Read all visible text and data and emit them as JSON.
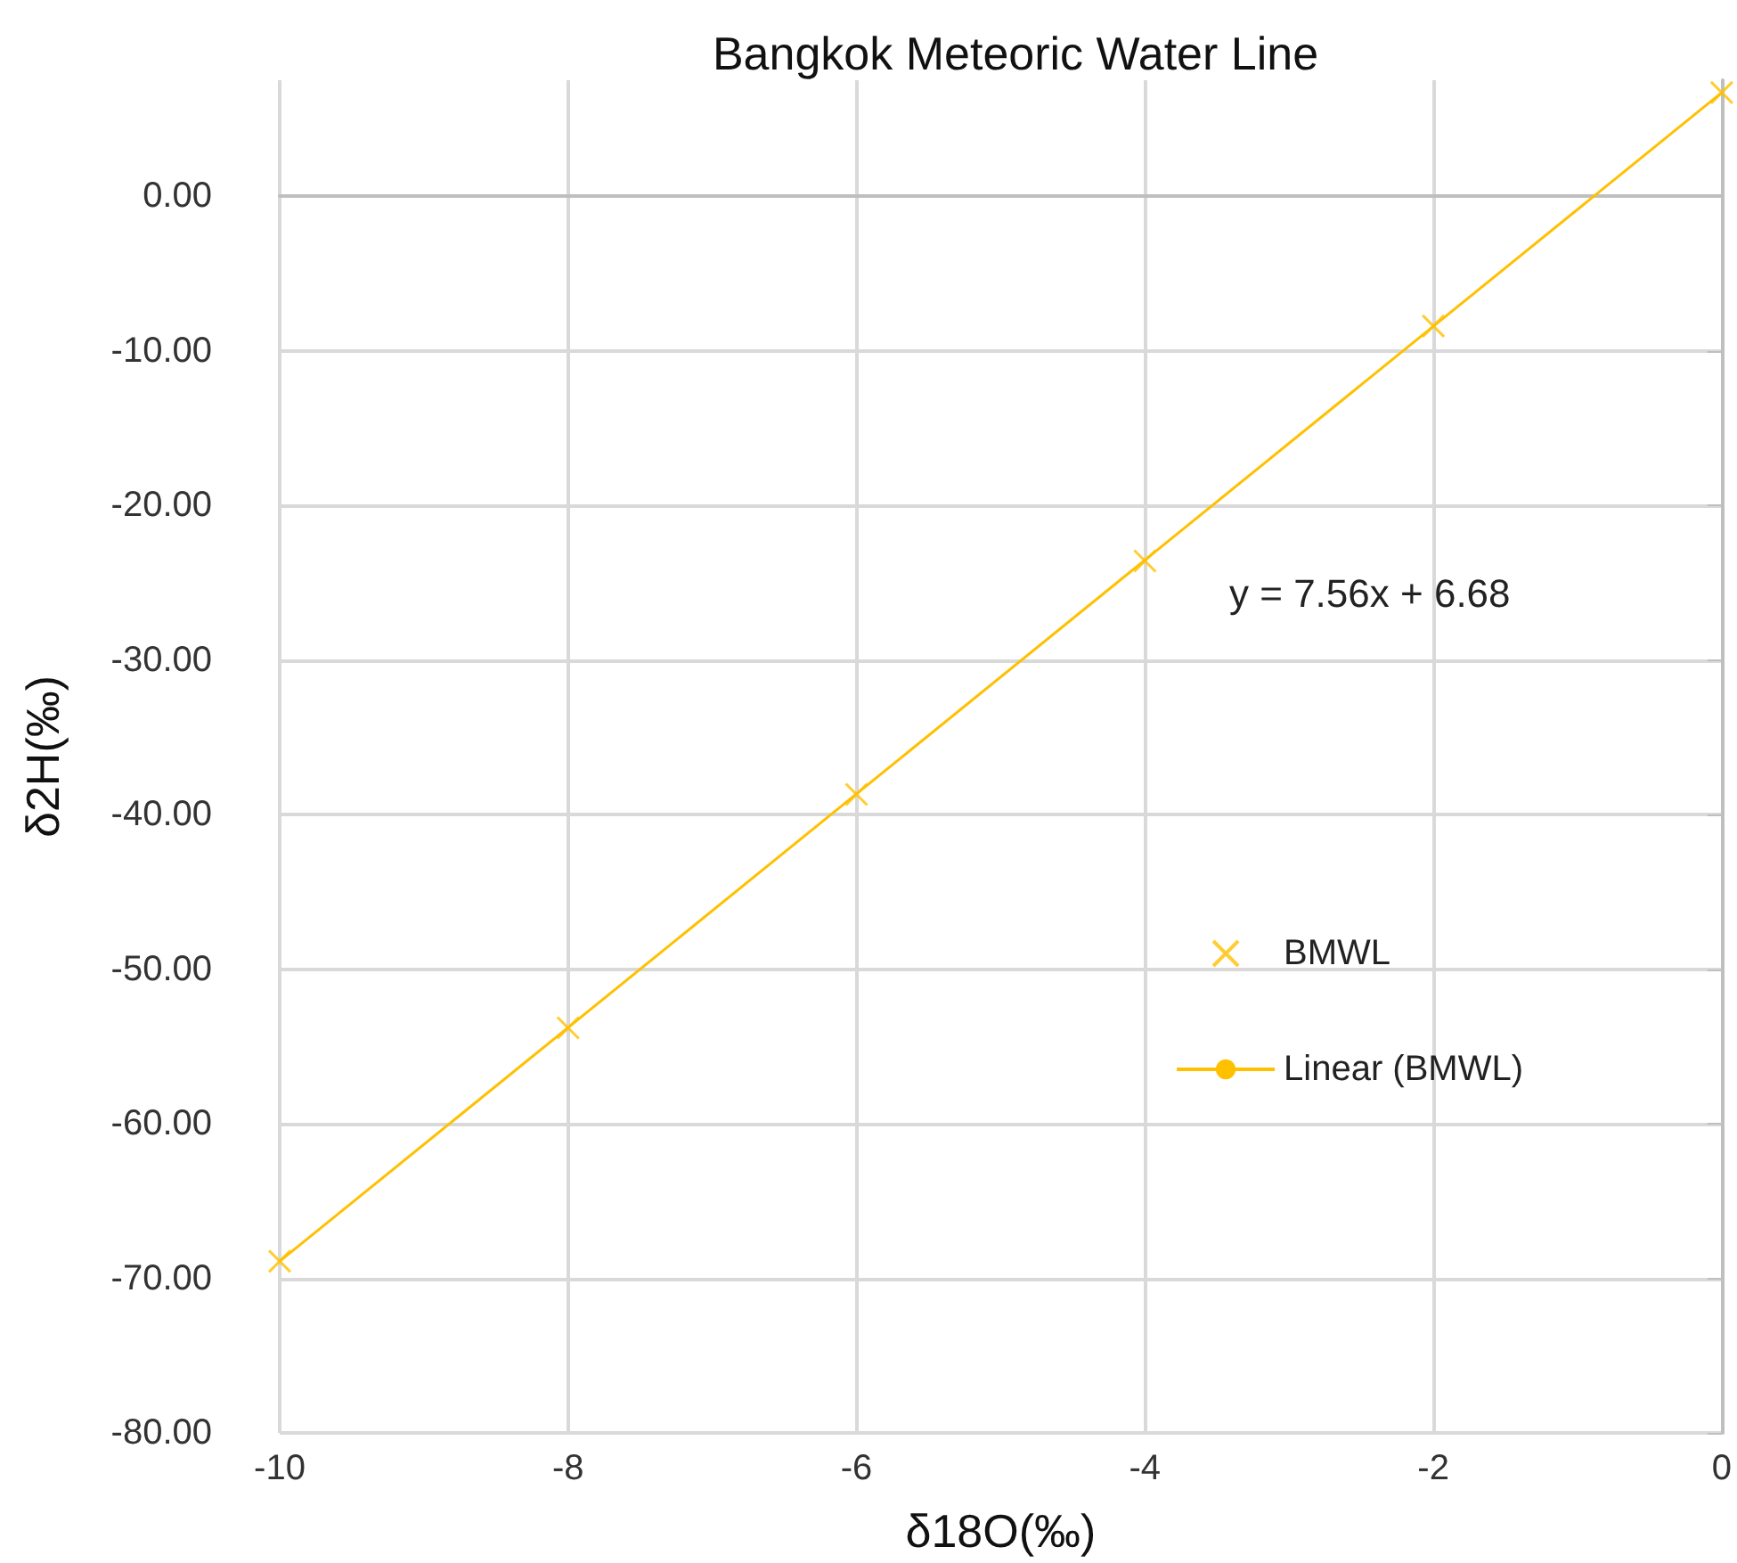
{
  "chart_data": {
    "type": "scatter",
    "title": "Bangkok Meteoric Water Line",
    "xlabel": "δ18O(‰)",
    "ylabel": "δ2H(‰)",
    "series": [
      {
        "name": "BMWL",
        "color": "#ffc000",
        "marker": "cross",
        "x": [
          -10,
          -8,
          -6,
          -4,
          -2,
          0
        ],
        "values": [
          -68.9,
          -53.8,
          -38.7,
          -23.6,
          -8.4,
          6.7
        ]
      },
      {
        "name": "Linear (BMWL)",
        "type": "line",
        "color": "#ffc000",
        "marker": "none",
        "line_style": "solid",
        "x": [
          -10,
          0
        ],
        "values": [
          -68.9,
          6.7
        ]
      }
    ],
    "annotations": [
      "y = 7.56x + 6.68"
    ],
    "xlim": [
      -10,
      0
    ],
    "xticks": [
      -10,
      -8,
      -6,
      -4,
      -2,
      0
    ],
    "ylim": [
      -80,
      7.5
    ],
    "yticks": [
      {
        "value": -80,
        "label": "-80.00"
      },
      {
        "value": -70,
        "label": "-70.00"
      },
      {
        "value": -60,
        "label": "-60.00"
      },
      {
        "value": -50,
        "label": "-50.00"
      },
      {
        "value": -40,
        "label": "-40.00"
      },
      {
        "value": -30,
        "label": "-30.00"
      },
      {
        "value": -20,
        "label": "-20.00"
      },
      {
        "value": -10,
        "label": "-10.00"
      },
      {
        "value": 0,
        "label": "0.00"
      }
    ],
    "grid": true,
    "legend": "right"
  }
}
